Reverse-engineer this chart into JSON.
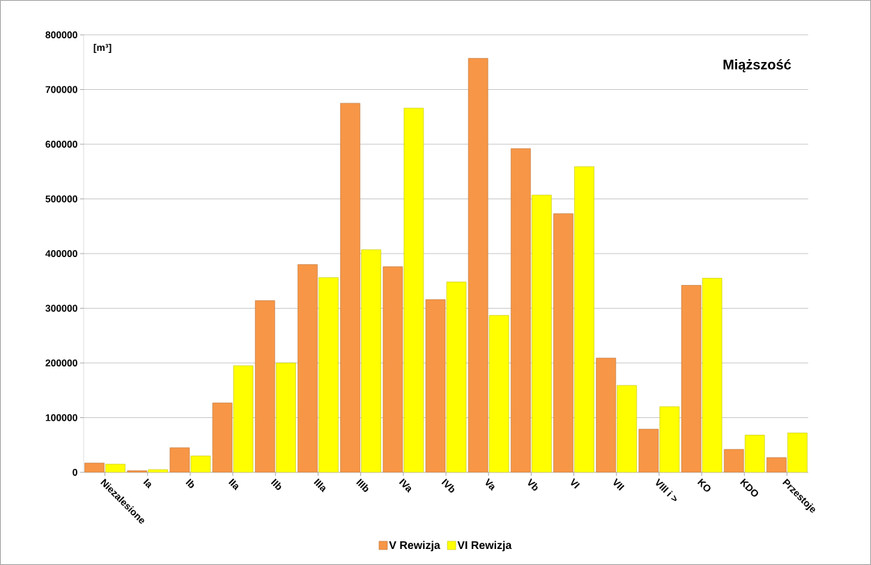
{
  "chart_data": {
    "type": "bar",
    "title": "Miąższość",
    "ylabel": "[m³]",
    "categories": [
      "Niezalesione",
      "Ia",
      "Ib",
      "IIa",
      "IIb",
      "IIIa",
      "IIIb",
      "IVa",
      "IVb",
      "Va",
      "Vb",
      "VI",
      "VII",
      "VIII i >",
      "KO",
      "KDO",
      "Przestoje"
    ],
    "series": [
      {
        "name": "V Rewizja",
        "color": "#f79646",
        "values": [
          17000,
          3000,
          45000,
          127000,
          314000,
          380000,
          675000,
          376000,
          316000,
          757000,
          592000,
          473000,
          209000,
          79000,
          342000,
          42000,
          27000
        ]
      },
      {
        "name": "VI Rewizja",
        "color": "#ffff00",
        "values": [
          15000,
          5000,
          30000,
          195000,
          200000,
          356000,
          407000,
          666000,
          348000,
          287000,
          507000,
          559000,
          159000,
          120000,
          355000,
          68000,
          72000
        ]
      }
    ],
    "ylim": [
      0,
      800000
    ],
    "yticks": [
      0,
      100000,
      200000,
      300000,
      400000,
      500000,
      600000,
      700000,
      800000
    ],
    "grid": "y",
    "legend": "bottom"
  }
}
